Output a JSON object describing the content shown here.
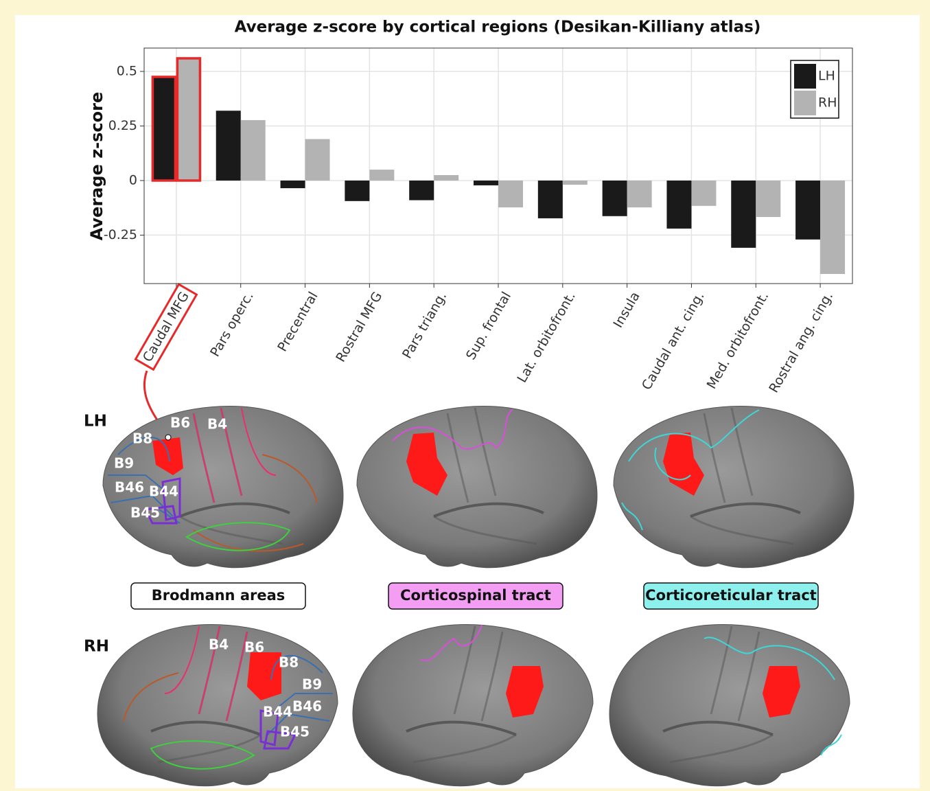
{
  "chart_data": {
    "type": "bar",
    "title": "Average z-score by cortical regions (Desikan-Killiany atlas)",
    "y_label": "Average z-score",
    "categories": [
      "Caudal MFG",
      "Pars operc.",
      "Precentral",
      "Rostral MFG",
      "Pars triang.",
      "Sup. frontal",
      "Lat. orbitofront.",
      "Insula",
      "Caudal ant. cing.",
      "Med. orbitofront.",
      "Rostral ang. cing."
    ],
    "series": [
      {
        "name": "LH",
        "color": "#1a1a1a",
        "values": [
          0.475,
          0.32,
          -0.035,
          -0.094,
          -0.09,
          -0.022,
          -0.173,
          -0.163,
          -0.22,
          -0.308,
          -0.27
        ]
      },
      {
        "name": "RH",
        "color": "#b3b3b3",
        "values": [
          0.56,
          0.277,
          0.19,
          0.05,
          0.025,
          -0.123,
          -0.019,
          -0.123,
          -0.116,
          -0.167,
          -0.428
        ]
      }
    ],
    "ylim": [
      -0.472,
      0.607
    ],
    "yticks": [
      -0.25,
      0,
      0.25,
      0.5
    ],
    "grid": true,
    "legend": "top-right",
    "highlight": {
      "index": 0,
      "color": "#e8292a"
    }
  },
  "brain_figure": {
    "hemispheres": [
      "LH",
      "RH"
    ],
    "panels": [
      "Brodmann areas",
      "Corticospinal tract",
      "Corticoreticular tract"
    ],
    "areas": [
      "B4",
      "B6",
      "B8",
      "B9",
      "B44",
      "B45",
      "B46"
    ]
  }
}
